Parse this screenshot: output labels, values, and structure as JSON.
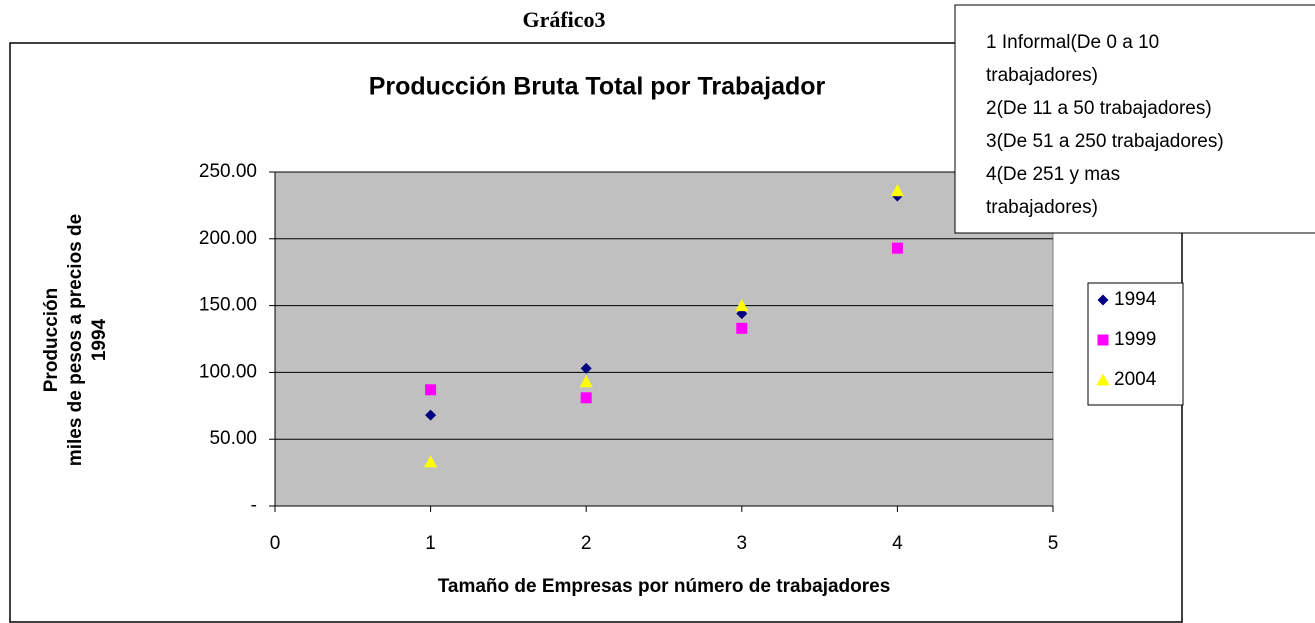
{
  "chart_data": {
    "type": "scatter",
    "page_title": "Gráfico3",
    "title": "Producción Bruta Total por Trabajador",
    "x_label": "Tamaño de Empresas por número de trabajadores",
    "y_label": [
      "Producción",
      "miles de pesos a precios de",
      "1994"
    ],
    "annotations": [
      "1 Informal(De 0 a 10",
      "trabajadores)",
      "2(De 11 a 50 trabajadores)",
      "3(De 51 a 250 trabajadores)",
      "4(De 251 y mas",
      "trabajadores)"
    ],
    "x": [
      1,
      2,
      3,
      4
    ],
    "series": [
      {
        "name": "1994",
        "color": "#000080",
        "marker": "diamond",
        "values": [
          68,
          103,
          144,
          232
        ]
      },
      {
        "name": "1999",
        "color": "#ff00ff",
        "marker": "square",
        "values": [
          87,
          81,
          133,
          193
        ]
      },
      {
        "name": "2004",
        "color": "#ffff00",
        "marker": "triangle",
        "values": [
          33,
          93,
          150,
          236
        ]
      }
    ],
    "xlim": [
      0,
      5
    ],
    "xticks": [
      0,
      1,
      2,
      3,
      4,
      5
    ],
    "ylim": [
      0,
      250
    ],
    "yticks": [
      {
        "value": 0,
        "label": "-"
      },
      {
        "value": 50,
        "label": "50.00"
      },
      {
        "value": 100,
        "label": "100.00"
      },
      {
        "value": 150,
        "label": "150.00"
      },
      {
        "value": 200,
        "label": "200.00"
      },
      {
        "value": 250,
        "label": "250.00"
      }
    ],
    "grid": true,
    "legend": "right"
  }
}
